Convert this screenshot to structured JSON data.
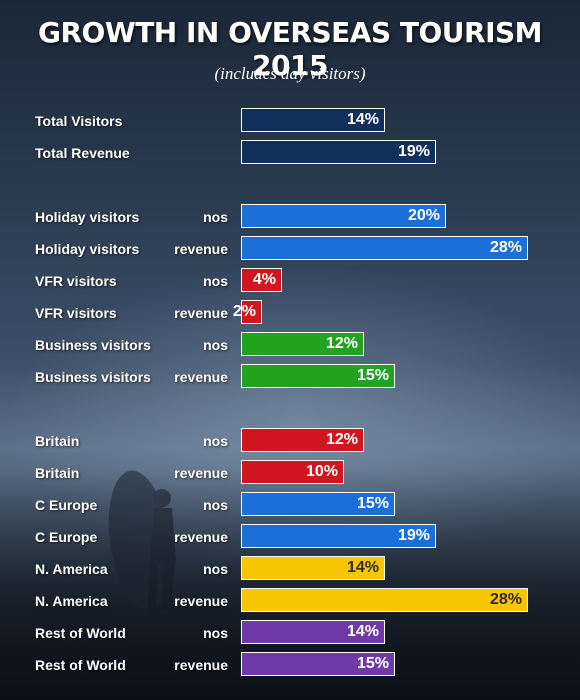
{
  "title": "GROWTH IN OVERSEAS TOURISM 2015",
  "subtitle": "(includes day visitors)",
  "colors": {
    "total": "#12305c",
    "blue": "#1c6fd6",
    "red": "#d0161f",
    "green": "#21a321",
    "yellow": "#f7c600",
    "purple": "#6f3aa8"
  },
  "chart_data": {
    "type": "bar",
    "orientation": "horizontal",
    "unit": "%",
    "xlim": [
      0,
      30
    ],
    "rows": [
      {
        "label": "Total Visitors",
        "measure": "",
        "value": 14,
        "display": "14%",
        "color": "total"
      },
      {
        "label": "Total Revenue",
        "measure": "",
        "value": 19,
        "display": "19%",
        "color": "total"
      },
      {
        "label": "Holiday visitors",
        "measure": "nos",
        "value": 20,
        "display": "20%",
        "color": "blue"
      },
      {
        "label": "Holiday visitors",
        "measure": "revenue",
        "value": 28,
        "display": "28%",
        "color": "blue"
      },
      {
        "label": "VFR visitors",
        "measure": "nos",
        "value": 4,
        "display": "4%",
        "color": "red"
      },
      {
        "label": "VFR visitors",
        "measure": "revenue",
        "value": 2,
        "display": "2%",
        "color": "red"
      },
      {
        "label": "Business visitors",
        "measure": "nos",
        "value": 12,
        "display": "12%",
        "color": "green"
      },
      {
        "label": "Business visitors",
        "measure": "revenue",
        "value": 15,
        "display": "15%",
        "color": "green"
      },
      {
        "label": "Britain",
        "measure": "nos",
        "value": 12,
        "display": "12%",
        "color": "red"
      },
      {
        "label": "Britain",
        "measure": "revenue",
        "value": 10,
        "display": "10%",
        "color": "red"
      },
      {
        "label": "C Europe",
        "measure": "nos",
        "value": 15,
        "display": "15%",
        "color": "blue"
      },
      {
        "label": "C Europe",
        "measure": "revenue",
        "value": 19,
        "display": "19%",
        "color": "blue"
      },
      {
        "label": "N. America",
        "measure": "nos",
        "value": 14,
        "display": "14%",
        "color": "yellow"
      },
      {
        "label": "N. America",
        "measure": "revenue",
        "value": 28,
        "display": "28%",
        "color": "yellow"
      },
      {
        "label": "Rest of World",
        "measure": "nos",
        "value": 14,
        "display": "14%",
        "color": "purple"
      },
      {
        "label": "Rest of World",
        "measure": "revenue",
        "value": 15,
        "display": "15%",
        "color": "purple"
      }
    ]
  }
}
